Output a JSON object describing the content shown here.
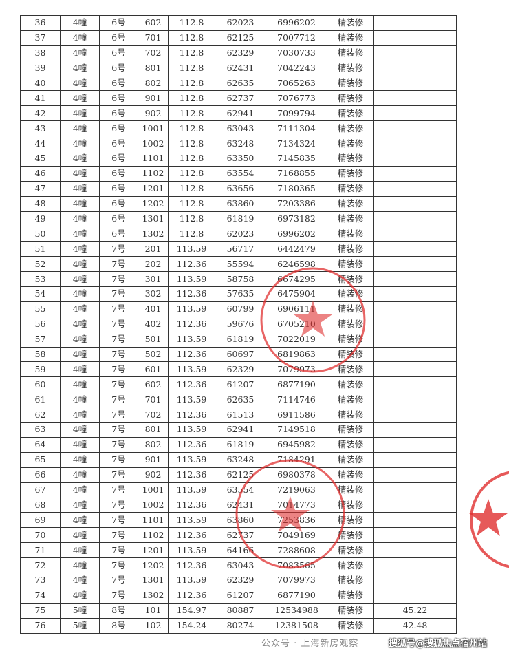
{
  "table": {
    "rows": [
      [
        "36",
        "4幢",
        "6号",
        "602",
        "112.8",
        "62023",
        "6996202",
        "精装修",
        ""
      ],
      [
        "37",
        "4幢",
        "6号",
        "701",
        "112.8",
        "62125",
        "7007712",
        "精装修",
        ""
      ],
      [
        "38",
        "4幢",
        "6号",
        "702",
        "112.8",
        "62329",
        "7030733",
        "精装修",
        ""
      ],
      [
        "39",
        "4幢",
        "6号",
        "801",
        "112.8",
        "62431",
        "7042243",
        "精装修",
        ""
      ],
      [
        "40",
        "4幢",
        "6号",
        "802",
        "112.8",
        "62635",
        "7065263",
        "精装修",
        ""
      ],
      [
        "41",
        "4幢",
        "6号",
        "901",
        "112.8",
        "62737",
        "7076773",
        "精装修",
        ""
      ],
      [
        "42",
        "4幢",
        "6号",
        "902",
        "112.8",
        "62941",
        "7099794",
        "精装修",
        ""
      ],
      [
        "43",
        "4幢",
        "6号",
        "1001",
        "112.8",
        "63043",
        "7111304",
        "精装修",
        ""
      ],
      [
        "44",
        "4幢",
        "6号",
        "1002",
        "112.8",
        "63248",
        "7134324",
        "精装修",
        ""
      ],
      [
        "45",
        "4幢",
        "6号",
        "1101",
        "112.8",
        "63350",
        "7145835",
        "精装修",
        ""
      ],
      [
        "46",
        "4幢",
        "6号",
        "1102",
        "112.8",
        "63554",
        "7168855",
        "精装修",
        ""
      ],
      [
        "47",
        "4幢",
        "6号",
        "1201",
        "112.8",
        "63656",
        "7180365",
        "精装修",
        ""
      ],
      [
        "48",
        "4幢",
        "6号",
        "1202",
        "112.8",
        "63860",
        "7203386",
        "精装修",
        ""
      ],
      [
        "49",
        "4幢",
        "6号",
        "1301",
        "112.8",
        "61819",
        "6973182",
        "精装修",
        ""
      ],
      [
        "50",
        "4幢",
        "6号",
        "1302",
        "112.8",
        "62023",
        "6996202",
        "精装修",
        ""
      ],
      [
        "51",
        "4幢",
        "7号",
        "201",
        "113.59",
        "56717",
        "6442479",
        "精装修",
        ""
      ],
      [
        "52",
        "4幢",
        "7号",
        "202",
        "112.36",
        "55594",
        "6246598",
        "精装修",
        ""
      ],
      [
        "53",
        "4幢",
        "7号",
        "301",
        "113.59",
        "58758",
        "6674295",
        "精装修",
        ""
      ],
      [
        "54",
        "4幢",
        "7号",
        "302",
        "112.36",
        "57635",
        "6475904",
        "精装修",
        ""
      ],
      [
        "55",
        "4幢",
        "7号",
        "401",
        "113.59",
        "60799",
        "6906111",
        "精装修",
        ""
      ],
      [
        "56",
        "4幢",
        "7号",
        "402",
        "112.36",
        "59676",
        "6705210",
        "精装修",
        ""
      ],
      [
        "57",
        "4幢",
        "7号",
        "501",
        "113.59",
        "61819",
        "7022019",
        "精装修",
        ""
      ],
      [
        "58",
        "4幢",
        "7号",
        "502",
        "112.36",
        "60697",
        "6819863",
        "精装修",
        ""
      ],
      [
        "59",
        "4幢",
        "7号",
        "601",
        "113.59",
        "62329",
        "7079973",
        "精装修",
        ""
      ],
      [
        "60",
        "4幢",
        "7号",
        "602",
        "112.36",
        "61207",
        "6877190",
        "精装修",
        ""
      ],
      [
        "61",
        "4幢",
        "7号",
        "701",
        "113.59",
        "62635",
        "7114746",
        "精装修",
        ""
      ],
      [
        "62",
        "4幢",
        "7号",
        "702",
        "112.36",
        "61513",
        "6911586",
        "精装修",
        ""
      ],
      [
        "63",
        "4幢",
        "7号",
        "801",
        "113.59",
        "62941",
        "7149518",
        "精装修",
        ""
      ],
      [
        "64",
        "4幢",
        "7号",
        "802",
        "112.36",
        "61819",
        "6945982",
        "精装修",
        ""
      ],
      [
        "65",
        "4幢",
        "7号",
        "901",
        "113.59",
        "63248",
        "7184291",
        "精装修",
        ""
      ],
      [
        "66",
        "4幢",
        "7号",
        "902",
        "112.36",
        "62125",
        "6980378",
        "精装修",
        ""
      ],
      [
        "67",
        "4幢",
        "7号",
        "1001",
        "113.59",
        "63554",
        "7219063",
        "精装修",
        ""
      ],
      [
        "68",
        "4幢",
        "7号",
        "1002",
        "112.36",
        "62431",
        "7014773",
        "精装修",
        ""
      ],
      [
        "69",
        "4幢",
        "7号",
        "1101",
        "113.59",
        "63860",
        "7253836",
        "精装修",
        ""
      ],
      [
        "70",
        "4幢",
        "7号",
        "1102",
        "112.36",
        "62737",
        "7049169",
        "精装修",
        ""
      ],
      [
        "71",
        "4幢",
        "7号",
        "1201",
        "113.59",
        "64166",
        "7288608",
        "精装修",
        ""
      ],
      [
        "72",
        "4幢",
        "7号",
        "1202",
        "112.36",
        "63043",
        "7083565",
        "精装修",
        ""
      ],
      [
        "73",
        "4幢",
        "7号",
        "1301",
        "113.59",
        "62329",
        "7079973",
        "精装修",
        ""
      ],
      [
        "74",
        "4幢",
        "7号",
        "1302",
        "112.36",
        "61207",
        "6877190",
        "精装修",
        ""
      ],
      [
        "75",
        "5幢",
        "8号",
        "101",
        "154.97",
        "80887",
        "12534988",
        "精装修",
        "45.22"
      ],
      [
        "76",
        "5幢",
        "8号",
        "102",
        "154.24",
        "80274",
        "12381508",
        "精装修",
        "42.48"
      ]
    ]
  },
  "watermarks": {
    "wechat": "公众号 · 上海新房观察",
    "sohu": "搜狐号@搜狐焦点宿州站"
  },
  "colors": {
    "stamp": "#e03030",
    "grid": "#333333"
  }
}
